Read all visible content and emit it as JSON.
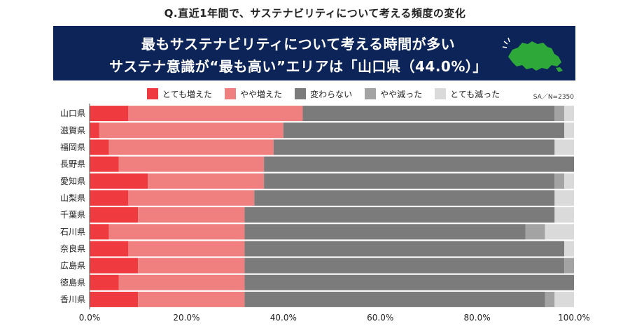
{
  "question": "Q.直近1年間で、サステナビリティについて考える頻度の変化",
  "banner": {
    "line1": "最もサステナビリティについて考える時間が多い",
    "line2": "サステナ意識が“最も高い”エリアは「山口県（44.0%）」"
  },
  "sample_note": "SA／N=2350",
  "map_icon": "yamaguchi-prefecture-map-icon",
  "colors": {
    "banner_bg": "#0d2458",
    "series": [
      "#ef3a3f",
      "#f08080",
      "#7b7b7b",
      "#a3a3a3",
      "#dadada"
    ]
  },
  "chart_data": {
    "type": "bar",
    "orientation": "horizontal",
    "stacked": true,
    "categories": [
      "山口県",
      "滋賀県",
      "福岡県",
      "長野県",
      "愛知県",
      "山梨県",
      "千葉県",
      "石川県",
      "奈良県",
      "広島県",
      "徳島県",
      "香川県"
    ],
    "series": [
      {
        "name": "とても増えた",
        "values": [
          8,
          2,
          4,
          6,
          12,
          8,
          10,
          4,
          8,
          10,
          6,
          10
        ]
      },
      {
        "name": "やや増えた",
        "values": [
          36,
          38,
          34,
          30,
          24,
          26,
          22,
          28,
          24,
          22,
          26,
          22
        ]
      },
      {
        "name": "変わらない",
        "values": [
          52,
          58,
          58,
          64,
          60,
          62,
          64,
          58,
          66,
          66,
          68,
          62
        ]
      },
      {
        "name": "やや減った",
        "values": [
          2,
          0,
          0,
          0,
          2,
          0,
          0,
          4,
          0,
          2,
          0,
          2
        ]
      },
      {
        "name": "とても減った",
        "values": [
          2,
          2,
          4,
          0,
          2,
          4,
          4,
          6,
          2,
          0,
          0,
          4
        ]
      }
    ],
    "xlim": [
      0,
      100
    ],
    "x_ticks": [
      "0.0%",
      "20.0%",
      "40.0%",
      "60.0%",
      "80.0%",
      "100.0%"
    ],
    "legend_position": "top",
    "grid": false
  }
}
